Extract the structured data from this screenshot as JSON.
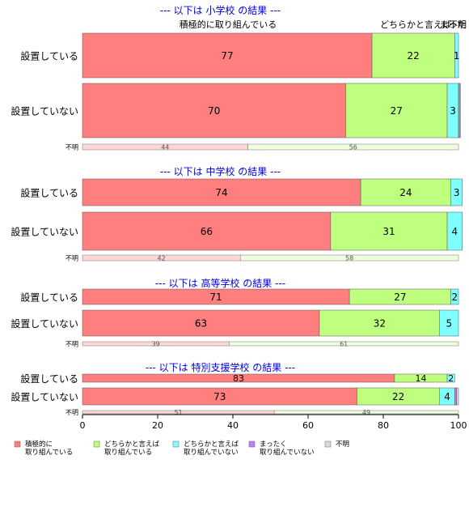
{
  "chart_data": {
    "type": "bar",
    "orientation": "horizontal",
    "stacked": true,
    "xlim": [
      0,
      100
    ],
    "x_ticks": [
      0,
      20,
      40,
      60,
      80,
      100
    ],
    "colors": {
      "cat1": "#ff7f7f",
      "cat2": "#bfff7f",
      "cat3": "#7fffff",
      "cat4": "#bf7fff",
      "cat5": "#d9d9d9",
      "unknown_a": "#ffd6d6",
      "unknown_b": "#eeffdd",
      "title": "#0000dd"
    },
    "legend": {
      "placement": "bottom",
      "entries": [
        {
          "label": "積極的に\n取り組んでいる",
          "color": "#ff7f7f"
        },
        {
          "label": "どちらかと言えば\n取り組んでいる",
          "color": "#bfff7f"
        },
        {
          "label": "どちらかと言えば\n取り組んでいない",
          "color": "#7fffff"
        },
        {
          "label": "まったく\n取り組んでいない",
          "color": "#bf7fff"
        },
        {
          "label": "不明",
          "color": "#d9d9d9"
        }
      ]
    },
    "top_labels": [
      {
        "text": "積極的に取り組んでいる"
      },
      {
        "text": "どちらかと言えば"
      },
      {
        "text": "不明"
      },
      {
        "text": "まった"
      }
    ],
    "panels": [
      {
        "title": "--- 以下は 小学校 の結果 ---",
        "rows": [
          {
            "label": "設置している",
            "values": [
              77,
              22,
              1,
              0,
              0
            ],
            "labels": [
              "77",
              "22",
              "1",
              "",
              ""
            ]
          },
          {
            "label": "設置していない",
            "values": [
              70,
              27,
              3,
              0.3,
              0.2
            ],
            "labels": [
              "70",
              "27",
              "3",
              "",
              ""
            ]
          }
        ],
        "unknown": {
          "label": "不明",
          "values": [
            44,
            56
          ]
        }
      },
      {
        "title": "--- 以下は 中学校 の結果 ---",
        "rows": [
          {
            "label": "設置している",
            "values": [
              74,
              24,
              3,
              0,
              0
            ],
            "labels": [
              "74",
              "24",
              "3",
              "",
              ""
            ]
          },
          {
            "label": "設置していない",
            "values": [
              66,
              31,
              4,
              0,
              0
            ],
            "labels": [
              "66",
              "31",
              "4",
              "",
              ""
            ]
          }
        ],
        "unknown": {
          "label": "不明",
          "values": [
            42,
            58
          ]
        }
      },
      {
        "title": "--- 以下は 高等学校 の結果 ---",
        "rows": [
          {
            "label": "設置している",
            "values": [
              71,
              27,
              2,
              0,
              0
            ],
            "labels": [
              "71",
              "27",
              "2",
              "",
              ""
            ]
          },
          {
            "label": "設置していない",
            "values": [
              63,
              32,
              5,
              0,
              0
            ],
            "labels": [
              "63",
              "32",
              "5",
              "",
              ""
            ]
          }
        ],
        "unknown": {
          "label": "不明",
          "values": [
            39,
            61
          ]
        }
      },
      {
        "title": "--- 以下は 特別支援学校 の結果 ---",
        "rows": [
          {
            "label": "設置している",
            "values": [
              83,
              14,
              2,
              0,
              0
            ],
            "labels": [
              "83",
              "14",
              "2",
              "",
              ""
            ]
          },
          {
            "label": "設置していない",
            "values": [
              73,
              22,
              4,
              0.5,
              0.5
            ],
            "labels": [
              "73",
              "22",
              "4",
              "",
              ""
            ]
          }
        ],
        "unknown": {
          "label": "不明",
          "values": [
            51,
            49
          ]
        }
      }
    ]
  }
}
